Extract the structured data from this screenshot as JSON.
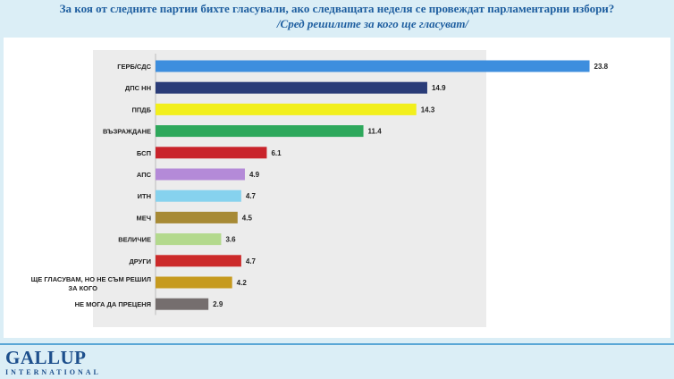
{
  "header": {
    "title": "За коя от следните партии бихте  гласували,  ако следващата неделя се провеждат парламентарни избори?",
    "subtitle": "/Сред решилите за кого ще гласуват/"
  },
  "logo": {
    "main": "GALLUP",
    "sub": "INTERNATIONAL"
  },
  "chart_data": {
    "type": "bar",
    "orientation": "horizontal",
    "xlim": [
      0,
      25
    ],
    "grid": false,
    "legend": "none",
    "categories": [
      "ГЕРБ/СДС",
      "ДПС НН",
      "ППДБ",
      "ВЪЗРАЖДАНЕ",
      "БСП",
      "АПС",
      "ИТН",
      "МЕЧ",
      "ВЕЛИЧИЕ",
      "ДРУГИ",
      "ЩЕ ГЛАСУВАМ, НО НЕ СЪМ РЕШИЛ ЗА КОГО",
      "НЕ МОГА ДА ПРЕЦЕНЯ"
    ],
    "values": [
      23.8,
      14.9,
      14.3,
      11.4,
      6.1,
      4.9,
      4.7,
      4.5,
      3.6,
      4.7,
      4.2,
      2.9
    ],
    "value_labels": [
      "23.8",
      "14.9",
      "14.3",
      "11.4",
      "6.1",
      "4.9",
      "4.7",
      "4.5",
      "3.6",
      "4.7",
      "4.2",
      "2.9"
    ],
    "colors": [
      "#3d8ede",
      "#2a3c78",
      "#f2ef1c",
      "#2ea85c",
      "#c9232b",
      "#b48ad8",
      "#86d2ee",
      "#a78a35",
      "#b3d98d",
      "#cc2a2a",
      "#c69a1e",
      "#756e6e"
    ]
  }
}
